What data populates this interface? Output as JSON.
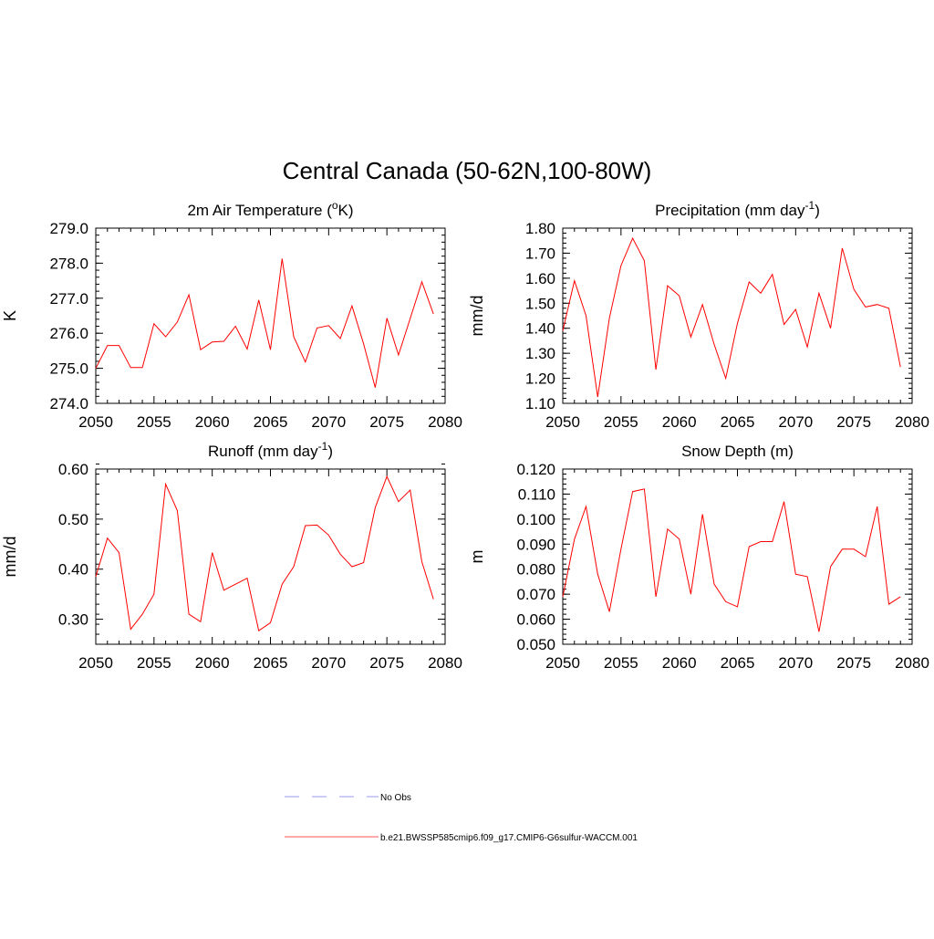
{
  "figure": {
    "title": "Central Canada (50-62N,100-80W)"
  },
  "legend": {
    "entries": [
      {
        "label": "No Obs",
        "color": "#9999ee",
        "dash": true
      },
      {
        "label": "b.e21.BWSSP585cmip6.f09_g17.CMIP6-G6sulfur-WACCM.001",
        "color": "#ff5555",
        "dash": false
      }
    ]
  },
  "chart_data": [
    {
      "type": "line",
      "title": "2m Air Temperature (",
      "title_sup": "o",
      "title_end": "K)",
      "ylabel": "K",
      "xlim": [
        2050,
        2080
      ],
      "ylim": [
        274.0,
        279.0
      ],
      "xticks": [
        2050,
        2055,
        2060,
        2065,
        2070,
        2075,
        2080
      ],
      "yticks": [
        "274.0",
        "275.0",
        "276.0",
        "277.0",
        "278.0",
        "279.0"
      ],
      "ytick_values": [
        274.0,
        275.0,
        276.0,
        277.0,
        278.0,
        279.0
      ],
      "yminor": 0.2,
      "x": [
        2050,
        2051,
        2052,
        2053,
        2054,
        2055,
        2056,
        2057,
        2058,
        2059,
        2060,
        2061,
        2062,
        2063,
        2064,
        2065,
        2066,
        2067,
        2068,
        2069,
        2070,
        2071,
        2072,
        2073,
        2074,
        2075,
        2076,
        2077,
        2078,
        2079
      ],
      "series": [
        {
          "color": "#ff0000",
          "values": [
            275.0,
            275.65,
            275.65,
            275.02,
            275.02,
            276.27,
            275.9,
            276.32,
            277.1,
            275.53,
            275.75,
            275.77,
            276.2,
            275.55,
            276.95,
            275.53,
            278.13,
            275.9,
            275.18,
            276.15,
            276.22,
            275.85,
            276.78,
            275.7,
            274.45,
            276.43,
            275.38,
            276.42,
            277.47,
            276.55
          ]
        }
      ]
    },
    {
      "type": "line",
      "title": "Precipitation (mm day",
      "title_sup": "-1",
      "title_end": ")",
      "ylabel": "mm/d",
      "xlim": [
        2050,
        2080
      ],
      "ylim": [
        1.1,
        1.8
      ],
      "xticks": [
        2050,
        2055,
        2060,
        2065,
        2070,
        2075,
        2080
      ],
      "yticks": [
        "1.10",
        "1.20",
        "1.30",
        "1.40",
        "1.50",
        "1.60",
        "1.70",
        "1.80"
      ],
      "ytick_values": [
        1.1,
        1.2,
        1.3,
        1.4,
        1.5,
        1.6,
        1.7,
        1.8
      ],
      "yminor": 0.02,
      "x": [
        2050,
        2051,
        2052,
        2053,
        2054,
        2055,
        2056,
        2057,
        2058,
        2059,
        2060,
        2061,
        2062,
        2063,
        2064,
        2065,
        2066,
        2067,
        2068,
        2069,
        2070,
        2071,
        2072,
        2073,
        2074,
        2075,
        2076,
        2077,
        2078,
        2079
      ],
      "series": [
        {
          "color": "#ff0000",
          "values": [
            1.39,
            1.59,
            1.45,
            1.125,
            1.44,
            1.65,
            1.76,
            1.67,
            1.235,
            1.57,
            1.53,
            1.365,
            1.495,
            1.335,
            1.2,
            1.42,
            1.585,
            1.54,
            1.615,
            1.415,
            1.475,
            1.325,
            1.54,
            1.4,
            1.72,
            1.555,
            1.485,
            1.495,
            1.48,
            1.245
          ]
        }
      ]
    },
    {
      "type": "line",
      "title": "Runoff (mm day",
      "title_sup": "-1",
      "title_end": ")",
      "ylabel": "mm/d",
      "xlim": [
        2050,
        2080
      ],
      "ylim": [
        0.25,
        0.6
      ],
      "xticks": [
        2050,
        2055,
        2060,
        2065,
        2070,
        2075,
        2080
      ],
      "yticks": [
        "0.30",
        "0.40",
        "0.50",
        "0.60"
      ],
      "ytick_values": [
        0.3,
        0.4,
        0.5,
        0.6
      ],
      "yminor": 0.02,
      "x": [
        2050,
        2051,
        2052,
        2053,
        2054,
        2055,
        2056,
        2057,
        2058,
        2059,
        2060,
        2061,
        2062,
        2063,
        2064,
        2065,
        2066,
        2067,
        2068,
        2069,
        2070,
        2071,
        2072,
        2073,
        2074,
        2075,
        2076,
        2077,
        2078,
        2079
      ],
      "series": [
        {
          "color": "#ff0000",
          "values": [
            0.385,
            0.462,
            0.433,
            0.28,
            0.31,
            0.35,
            0.57,
            0.517,
            0.31,
            0.295,
            0.433,
            0.358,
            0.37,
            0.382,
            0.277,
            0.293,
            0.37,
            0.405,
            0.487,
            0.488,
            0.468,
            0.43,
            0.405,
            0.413,
            0.523,
            0.585,
            0.535,
            0.558,
            0.415,
            0.34
          ]
        }
      ]
    },
    {
      "type": "line",
      "title": "Snow Depth (m)",
      "title_sup": "",
      "title_end": "",
      "ylabel": "m",
      "xlim": [
        2050,
        2080
      ],
      "ylim": [
        0.05,
        0.12
      ],
      "xticks": [
        2050,
        2055,
        2060,
        2065,
        2070,
        2075,
        2080
      ],
      "yticks": [
        "0.050",
        "0.060",
        "0.070",
        "0.080",
        "0.090",
        "0.100",
        "0.110",
        "0.120"
      ],
      "ytick_values": [
        0.05,
        0.06,
        0.07,
        0.08,
        0.09,
        0.1,
        0.11,
        0.12
      ],
      "yminor": 0.002,
      "x": [
        2050,
        2051,
        2052,
        2053,
        2054,
        2055,
        2056,
        2057,
        2058,
        2059,
        2060,
        2061,
        2062,
        2063,
        2064,
        2065,
        2066,
        2067,
        2068,
        2069,
        2070,
        2071,
        2072,
        2073,
        2074,
        2075,
        2076,
        2077,
        2078,
        2079
      ],
      "series": [
        {
          "color": "#ff0000",
          "values": [
            0.069,
            0.092,
            0.105,
            0.078,
            0.063,
            0.088,
            0.111,
            0.112,
            0.069,
            0.096,
            0.092,
            0.07,
            0.102,
            0.074,
            0.067,
            0.065,
            0.089,
            0.091,
            0.091,
            0.107,
            0.078,
            0.077,
            0.055,
            0.081,
            0.088,
            0.088,
            0.085,
            0.105,
            0.066,
            0.069
          ]
        }
      ]
    }
  ]
}
